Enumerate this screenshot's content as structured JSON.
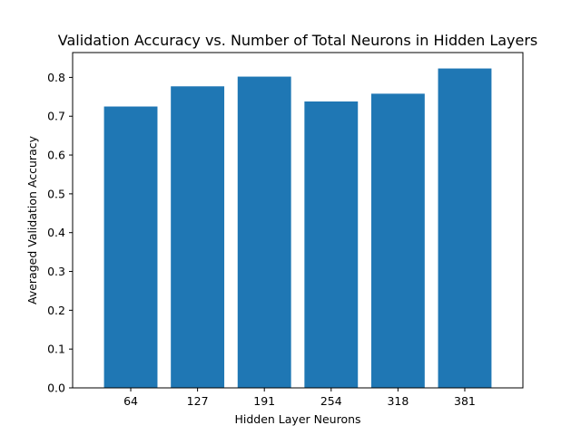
{
  "colors": {
    "bar": "#1f77b4",
    "axis": "#000000",
    "background": "#ffffff"
  },
  "chart_data": {
    "type": "bar",
    "title": "Validation Accuracy vs. Number of Total Neurons in Hidden Layers",
    "xlabel": "Hidden Layer Neurons",
    "ylabel": "Averaged Validation Accuracy",
    "categories": [
      "64",
      "127",
      "191",
      "254",
      "318",
      "381"
    ],
    "values": [
      0.725,
      0.777,
      0.802,
      0.738,
      0.758,
      0.823
    ],
    "ylim": [
      0,
      0.864
    ],
    "yticks": [
      {
        "value": 0.0,
        "label": "0.0"
      },
      {
        "value": 0.1,
        "label": "0.1"
      },
      {
        "value": 0.2,
        "label": "0.2"
      },
      {
        "value": 0.3,
        "label": "0.3"
      },
      {
        "value": 0.4,
        "label": "0.4"
      },
      {
        "value": 0.5,
        "label": "0.5"
      },
      {
        "value": 0.6,
        "label": "0.6"
      },
      {
        "value": 0.7,
        "label": "0.7"
      },
      {
        "value": 0.8,
        "label": "0.8"
      }
    ],
    "grid": false,
    "legend": "none"
  }
}
